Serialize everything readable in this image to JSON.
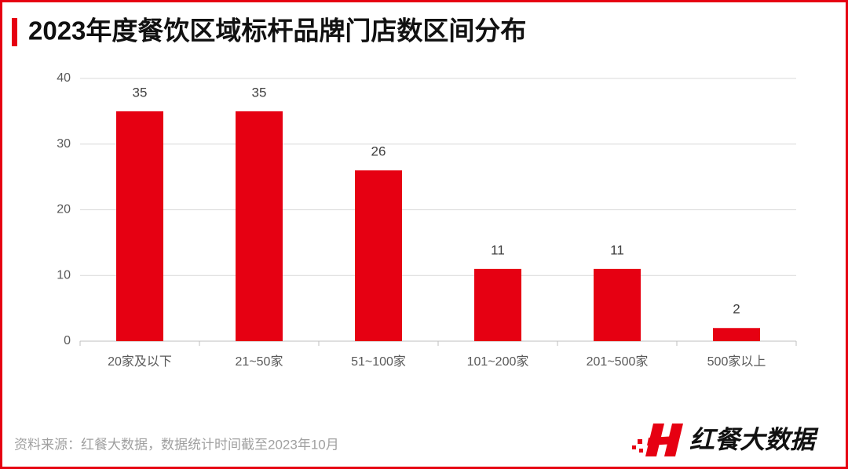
{
  "chart_data": {
    "type": "bar",
    "title": "2023年度餐饮区域标杆品牌门店数区间分布",
    "categories": [
      "20家及以下",
      "21~50家",
      "51~100家",
      "101~200家",
      "201~500家",
      "500家以上"
    ],
    "values": [
      35,
      35,
      26,
      11,
      11,
      2
    ],
    "color": "#e60012",
    "ylim": [
      0,
      40
    ],
    "yticks": [
      0,
      10,
      20,
      30,
      40
    ],
    "grid": true,
    "source": "资料来源：红餐大数据，数据统计时间截至2023年10月"
  },
  "logo": "红餐大数据"
}
